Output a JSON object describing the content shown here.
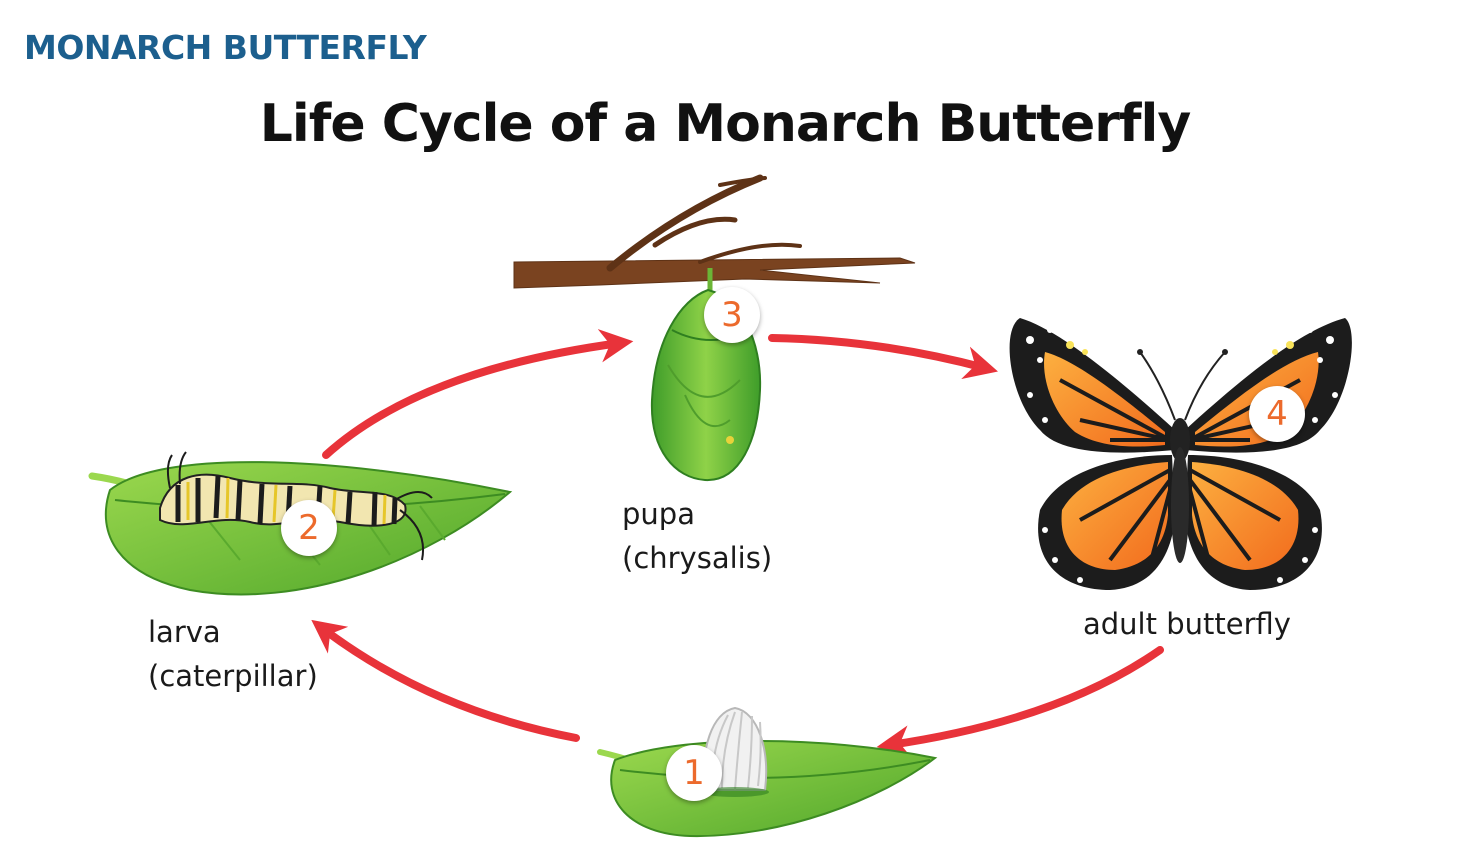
{
  "header": "MONARCH BUTTERFLY",
  "title": "Life Cycle of a Monarch Butterfly",
  "stages": [
    {
      "number": "1",
      "line1": "",
      "line2": ""
    },
    {
      "number": "2",
      "line1": "larva",
      "line2": "(caterpillar)"
    },
    {
      "number": "3",
      "line1": "pupa",
      "line2": "(chrysalis)"
    },
    {
      "number": "4",
      "line1": "adult butterfly",
      "line2": ""
    }
  ],
  "colors": {
    "header": "#1c5f8e",
    "badge_number": "#ec6a2c",
    "arrow": "#e8333a",
    "leaf": "#78c43a",
    "butterfly_orange": "#f7941d"
  },
  "icons": [
    "egg-icon",
    "caterpillar-icon",
    "chrysalis-icon",
    "butterfly-icon",
    "branch-icon",
    "leaf-icon"
  ]
}
